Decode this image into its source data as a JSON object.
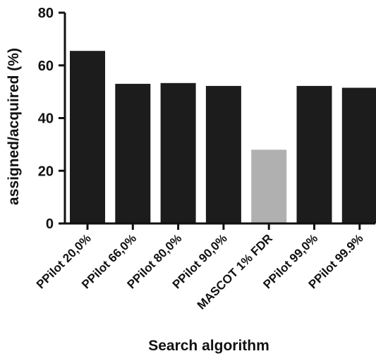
{
  "chart_data": {
    "type": "bar",
    "title": "",
    "xlabel": "Search algorithm",
    "ylabel": "assigned/acquired (%)",
    "categories": [
      "PPilot 20,0%",
      "PPilot 66,0%",
      "PPilot 80,0%",
      "PPilot 90,0%",
      "MASCOT 1% FDR",
      "PPilot 99,0%",
      "PPilot 99.9%"
    ],
    "values": [
      65.5,
      53,
      53.3,
      52.2,
      28,
      52.2,
      51.5
    ],
    "bar_colors": [
      "#1c1c1c",
      "#1c1c1c",
      "#1c1c1c",
      "#1c1c1c",
      "#b0b0b0",
      "#1c1c1c",
      "#1c1c1c"
    ],
    "ylim": [
      0,
      80
    ],
    "yticks": [
      0,
      20,
      40,
      60,
      80
    ],
    "grid": false,
    "legend": "none"
  }
}
